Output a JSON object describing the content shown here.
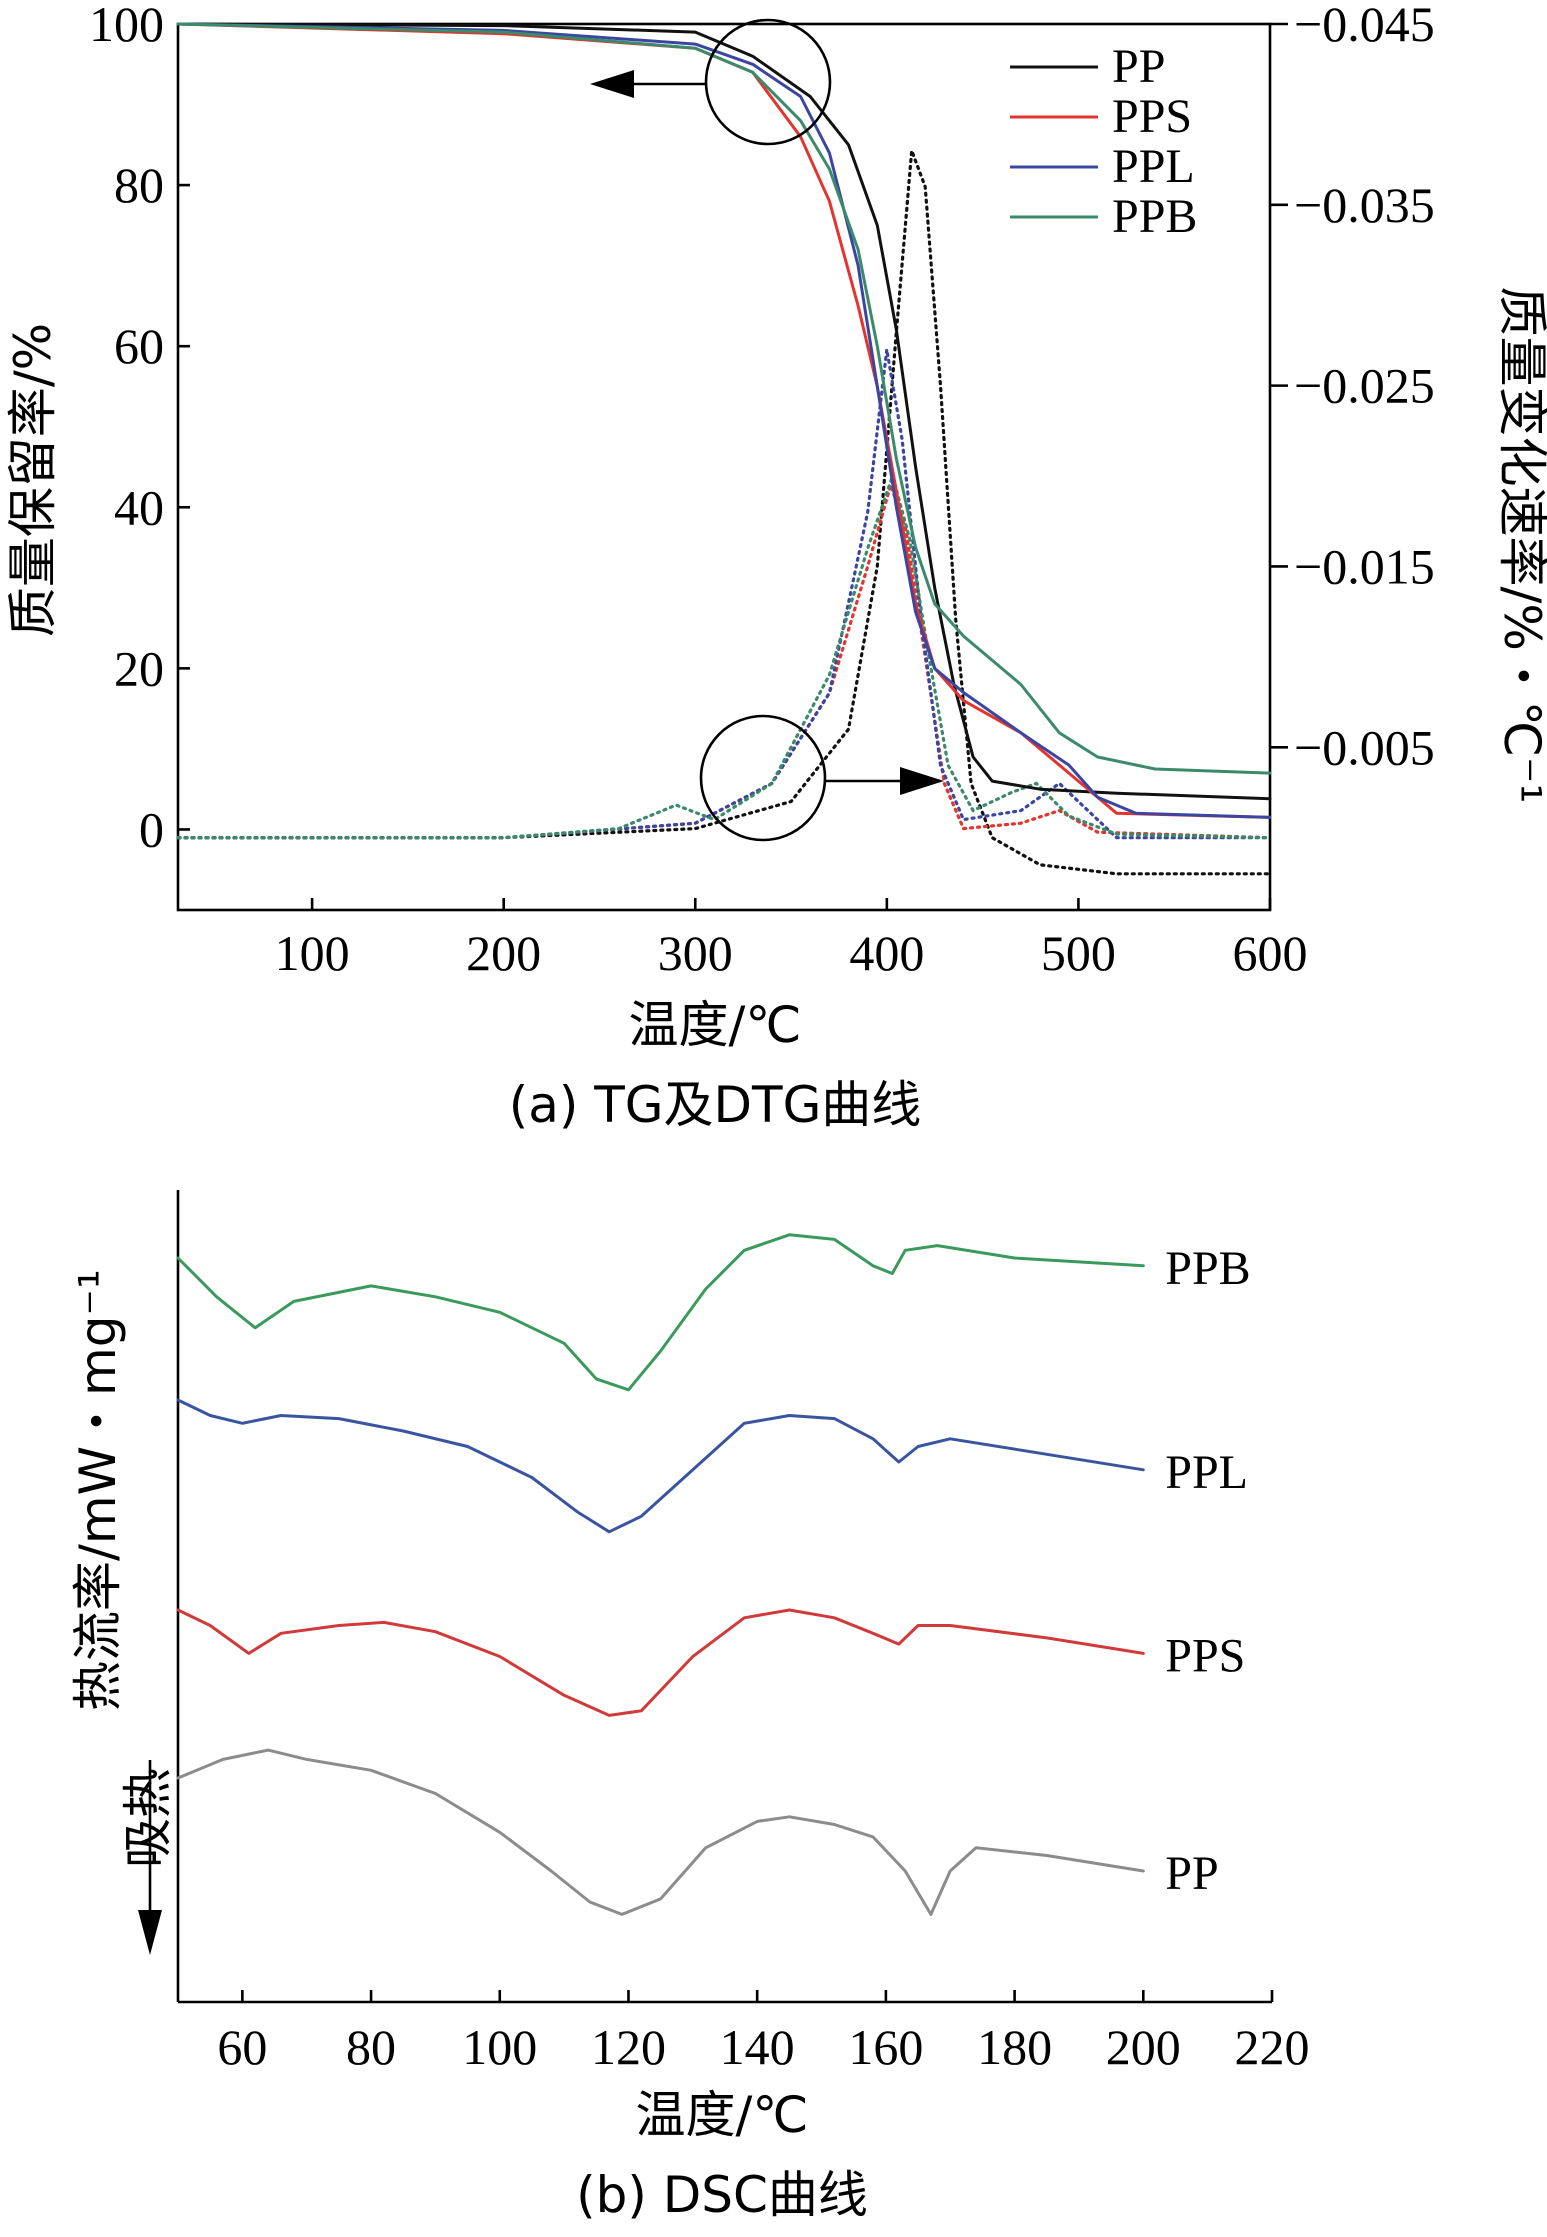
{
  "chart_data": [
    {
      "type": "line",
      "caption": "(a) TG及DTG曲线",
      "xlabel": "温度/℃",
      "ylabel": "质量保留率/%",
      "y2label": "质量变化速率/%・℃⁻¹",
      "xlim": [
        30,
        600
      ],
      "ylim": [
        -10,
        100
      ],
      "y2lim": [
        0.004,
        -0.045
      ],
      "xticks": [
        "100",
        "200",
        "300",
        "400",
        "500",
        "600"
      ],
      "yticks": [
        "0",
        "20",
        "40",
        "60",
        "80",
        "100"
      ],
      "y2ticks": [
        "−0.045",
        "−0.035",
        "−0.025",
        "−0.015",
        "−0.005"
      ],
      "legend_position": "top-right",
      "annotations": [
        "TG curves → left axis (arrow left)",
        "DTG curves → right axis (arrow right)"
      ],
      "series": [
        {
          "name": "PP",
          "color": "#111111",
          "tg": [
            [
              30,
              100
            ],
            [
              200,
              99.8
            ],
            [
              300,
              99
            ],
            [
              330,
              96
            ],
            [
              360,
              91
            ],
            [
              380,
              85
            ],
            [
              395,
              75
            ],
            [
              405,
              62
            ],
            [
              415,
              45
            ],
            [
              425,
              30
            ],
            [
              435,
              18
            ],
            [
              445,
              9
            ],
            [
              455,
              6
            ],
            [
              480,
              5
            ],
            [
              520,
              4.5
            ],
            [
              600,
              3.8
            ]
          ],
          "dtg": [
            [
              30,
              0
            ],
            [
              200,
              0
            ],
            [
              300,
              -0.0005
            ],
            [
              350,
              -0.002
            ],
            [
              380,
              -0.006
            ],
            [
              395,
              -0.015
            ],
            [
              405,
              -0.028
            ],
            [
              413,
              -0.038
            ],
            [
              420,
              -0.036
            ],
            [
              428,
              -0.025
            ],
            [
              436,
              -0.012
            ],
            [
              444,
              -0.003
            ],
            [
              455,
              0.0
            ],
            [
              480,
              0.0015
            ],
            [
              520,
              0.002
            ],
            [
              600,
              0.002
            ]
          ]
        },
        {
          "name": "PPS",
          "color": "#e3342f",
          "tg": [
            [
              30,
              100
            ],
            [
              200,
              98.8
            ],
            [
              300,
              97
            ],
            [
              330,
              94
            ],
            [
              355,
              86
            ],
            [
              370,
              78
            ],
            [
              385,
              65
            ],
            [
              395,
              55
            ],
            [
              405,
              42
            ],
            [
              415,
              28
            ],
            [
              425,
              20
            ],
            [
              440,
              16
            ],
            [
              470,
              12
            ],
            [
              500,
              6
            ],
            [
              520,
              2
            ],
            [
              600,
              1.5
            ]
          ],
          "dtg": [
            [
              30,
              0
            ],
            [
              200,
              0
            ],
            [
              300,
              -0.0008
            ],
            [
              340,
              -0.003
            ],
            [
              370,
              -0.008
            ],
            [
              390,
              -0.015
            ],
            [
              402,
              -0.0195
            ],
            [
              410,
              -0.017
            ],
            [
              420,
              -0.01
            ],
            [
              430,
              -0.003
            ],
            [
              440,
              -0.0005
            ],
            [
              470,
              -0.0008
            ],
            [
              490,
              -0.0015
            ],
            [
              510,
              -0.0003
            ],
            [
              600,
              0.0
            ]
          ]
        },
        {
          "name": "PPL",
          "color": "#3b46a1",
          "tg": [
            [
              30,
              100
            ],
            [
              200,
              99.2
            ],
            [
              300,
              97.5
            ],
            [
              330,
              95
            ],
            [
              355,
              91
            ],
            [
              370,
              84
            ],
            [
              385,
              70
            ],
            [
              395,
              55
            ],
            [
              405,
              40
            ],
            [
              415,
              27
            ],
            [
              425,
              20
            ],
            [
              440,
              17
            ],
            [
              470,
              12
            ],
            [
              495,
              8
            ],
            [
              510,
              4
            ],
            [
              530,
              2
            ],
            [
              600,
              1.5
            ]
          ],
          "dtg": [
            [
              30,
              0
            ],
            [
              200,
              0
            ],
            [
              300,
              -0.0008
            ],
            [
              340,
              -0.003
            ],
            [
              370,
              -0.008
            ],
            [
              390,
              -0.018
            ],
            [
              400,
              -0.027
            ],
            [
              408,
              -0.022
            ],
            [
              418,
              -0.012
            ],
            [
              428,
              -0.004
            ],
            [
              440,
              -0.001
            ],
            [
              470,
              -0.0015
            ],
            [
              490,
              -0.003
            ],
            [
              505,
              -0.0015
            ],
            [
              520,
              0.0
            ],
            [
              600,
              0.0
            ]
          ]
        },
        {
          "name": "PPB",
          "color": "#3a8a6b",
          "tg": [
            [
              30,
              100
            ],
            [
              200,
              99
            ],
            [
              300,
              97
            ],
            [
              330,
              94
            ],
            [
              355,
              88
            ],
            [
              370,
              82
            ],
            [
              385,
              72
            ],
            [
              395,
              60
            ],
            [
              405,
              46
            ],
            [
              415,
              35
            ],
            [
              425,
              28
            ],
            [
              440,
              24
            ],
            [
              470,
              18
            ],
            [
              490,
              12
            ],
            [
              510,
              9
            ],
            [
              540,
              7.5
            ],
            [
              600,
              7
            ]
          ],
          "dtg": [
            [
              30,
              0
            ],
            [
              200,
              0
            ],
            [
              260,
              -0.0005
            ],
            [
              290,
              -0.0018
            ],
            [
              310,
              -0.001
            ],
            [
              340,
              -0.003
            ],
            [
              370,
              -0.009
            ],
            [
              390,
              -0.016
            ],
            [
              403,
              -0.02
            ],
            [
              412,
              -0.0165
            ],
            [
              422,
              -0.01
            ],
            [
              432,
              -0.004
            ],
            [
              445,
              -0.0015
            ],
            [
              465,
              -0.0025
            ],
            [
              478,
              -0.003
            ],
            [
              495,
              -0.0012
            ],
            [
              520,
              -0.0002
            ],
            [
              600,
              0.0
            ]
          ]
        }
      ]
    },
    {
      "type": "line",
      "caption": "(b) DSC曲线",
      "xlabel": "温度/℃",
      "ylabel": "热流率/mW・mg⁻¹",
      "xlim": [
        50,
        220
      ],
      "xticks": [
        "60",
        "80",
        "100",
        "120",
        "140",
        "160",
        "180",
        "200",
        "220"
      ],
      "y_ticks_shown": false,
      "annotations": [
        "吸热"
      ],
      "series": [
        {
          "name": "PPB",
          "color": "#3a9a5c",
          "offset": 0,
          "values": [
            [
              50,
              0
            ],
            [
              56,
              -25
            ],
            [
              62,
              -45
            ],
            [
              68,
              -28
            ],
            [
              80,
              -18
            ],
            [
              90,
              -25
            ],
            [
              100,
              -35
            ],
            [
              110,
              -55
            ],
            [
              115,
              -78
            ],
            [
              120,
              -85
            ],
            [
              125,
              -60
            ],
            [
              132,
              -20
            ],
            [
              138,
              5
            ],
            [
              145,
              15
            ],
            [
              152,
              12
            ],
            [
              158,
              -5
            ],
            [
              161,
              -10
            ],
            [
              163,
              5
            ],
            [
              168,
              8
            ],
            [
              180,
              0
            ],
            [
              200,
              -5
            ]
          ]
        },
        {
          "name": "PPL",
          "color": "#3a55a0",
          "offset": 1,
          "values": [
            [
              50,
              0
            ],
            [
              55,
              -10
            ],
            [
              60,
              -15
            ],
            [
              66,
              -10
            ],
            [
              75,
              -12
            ],
            [
              85,
              -20
            ],
            [
              95,
              -30
            ],
            [
              105,
              -50
            ],
            [
              112,
              -72
            ],
            [
              117,
              -85
            ],
            [
              122,
              -75
            ],
            [
              130,
              -45
            ],
            [
              138,
              -15
            ],
            [
              145,
              -10
            ],
            [
              152,
              -12
            ],
            [
              158,
              -25
            ],
            [
              162,
              -40
            ],
            [
              165,
              -30
            ],
            [
              170,
              -25
            ],
            [
              185,
              -35
            ],
            [
              200,
              -45
            ]
          ]
        },
        {
          "name": "PPS",
          "color": "#d03a3a",
          "offset": 2,
          "values": [
            [
              50,
              0
            ],
            [
              55,
              -10
            ],
            [
              61,
              -28
            ],
            [
              66,
              -15
            ],
            [
              75,
              -10
            ],
            [
              82,
              -8
            ],
            [
              90,
              -14
            ],
            [
              100,
              -30
            ],
            [
              110,
              -55
            ],
            [
              117,
              -68
            ],
            [
              122,
              -65
            ],
            [
              130,
              -30
            ],
            [
              138,
              -5
            ],
            [
              145,
              0
            ],
            [
              152,
              -5
            ],
            [
              158,
              -15
            ],
            [
              162,
              -22
            ],
            [
              165,
              -10
            ],
            [
              170,
              -10
            ],
            [
              185,
              -18
            ],
            [
              200,
              -28
            ]
          ]
        },
        {
          "name": "PP",
          "color": "#8c8c8c",
          "offset": 3,
          "values": [
            [
              50,
              0
            ],
            [
              57,
              12
            ],
            [
              64,
              18
            ],
            [
              70,
              12
            ],
            [
              80,
              5
            ],
            [
              90,
              -10
            ],
            [
              100,
              -35
            ],
            [
              108,
              -60
            ],
            [
              114,
              -80
            ],
            [
              119,
              -88
            ],
            [
              125,
              -78
            ],
            [
              132,
              -45
            ],
            [
              140,
              -28
            ],
            [
              145,
              -25
            ],
            [
              152,
              -30
            ],
            [
              158,
              -38
            ],
            [
              163,
              -60
            ],
            [
              167,
              -88
            ],
            [
              170,
              -60
            ],
            [
              174,
              -45
            ],
            [
              185,
              -50
            ],
            [
              200,
              -60
            ]
          ]
        }
      ]
    }
  ]
}
